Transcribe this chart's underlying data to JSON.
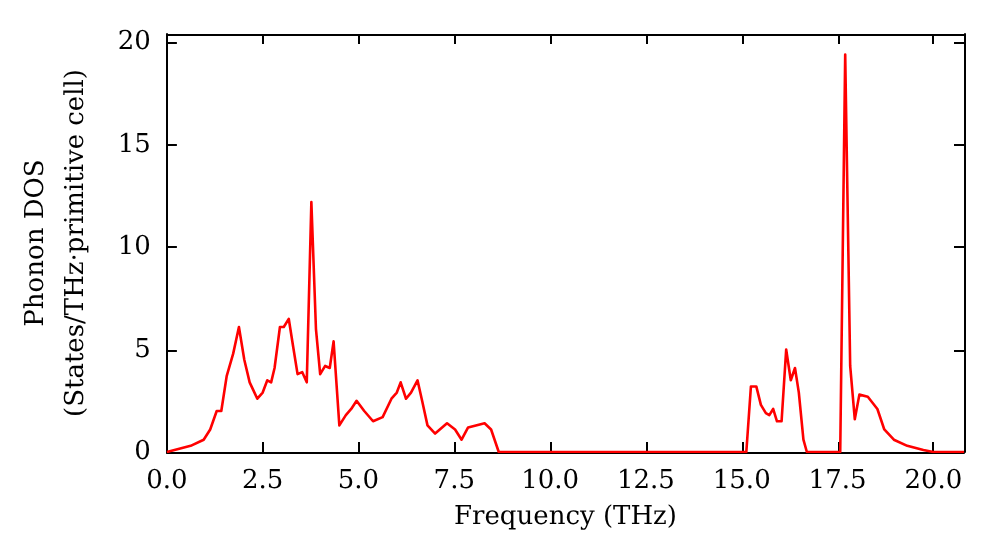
{
  "chart_data": {
    "type": "line",
    "xlabel": "Frequency (THz)",
    "ylabel": "Phonon DOS\n(States/THz·primitive cell)",
    "xlim": [
      0,
      20.8
    ],
    "ylim": [
      0,
      20.4
    ],
    "xticks": [
      {
        "value": 0,
        "label": "0.0"
      },
      {
        "value": 2.5,
        "label": "2.5"
      },
      {
        "value": 5,
        "label": "5.0"
      },
      {
        "value": 7.5,
        "label": "7.5"
      },
      {
        "value": 10,
        "label": "10.0"
      },
      {
        "value": 12.5,
        "label": "12.5"
      },
      {
        "value": 15,
        "label": "15.0"
      },
      {
        "value": 17.5,
        "label": "17.5"
      },
      {
        "value": 20,
        "label": "20.0"
      }
    ],
    "yticks": [
      0,
      5,
      10,
      15,
      20
    ],
    "grid": false,
    "marker": "none",
    "line_style": "solid",
    "x": [
      0,
      0.62,
      0.96,
      1.13,
      1.3,
      1.42,
      1.56,
      1.73,
      1.88,
      2.02,
      2.16,
      2.36,
      2.5,
      2.62,
      2.72,
      2.81,
      2.95,
      3.05,
      3.18,
      3.29,
      3.41,
      3.53,
      3.65,
      3.77,
      3.89,
      4.0,
      4.13,
      4.25,
      4.35,
      4.5,
      4.67,
      4.81,
      4.95,
      5.15,
      5.38,
      5.63,
      5.86,
      6.0,
      6.1,
      6.24,
      6.37,
      6.54,
      6.66,
      6.8,
      7.0,
      7.31,
      7.52,
      7.69,
      7.86,
      8.29,
      8.46,
      8.66,
      15.12,
      15.24,
      15.38,
      15.5,
      15.63,
      15.72,
      15.82,
      15.92,
      16.04,
      16.16,
      16.28,
      16.39,
      16.49,
      16.61,
      16.7,
      17.57,
      17.7,
      17.83,
      17.95,
      18.07,
      18.29,
      18.54,
      18.72,
      18.97,
      19.32,
      19.74,
      20.0,
      20.8
    ],
    "series": [
      {
        "color": "#ff0000",
        "values": [
          0,
          0.3,
          0.6,
          1.1,
          2.0,
          2.0,
          3.7,
          4.8,
          6.1,
          4.5,
          3.4,
          2.6,
          2.9,
          3.5,
          3.4,
          4.1,
          6.1,
          6.1,
          6.5,
          5.2,
          3.8,
          3.9,
          3.4,
          12.2,
          6.0,
          3.8,
          4.2,
          4.1,
          5.4,
          1.3,
          1.8,
          2.1,
          2.5,
          2.0,
          1.5,
          1.7,
          2.6,
          2.9,
          3.4,
          2.6,
          2.9,
          3.5,
          2.5,
          1.3,
          0.9,
          1.4,
          1.1,
          0.6,
          1.2,
          1.4,
          1.1,
          0,
          0,
          3.2,
          3.2,
          2.3,
          1.9,
          1.8,
          2.1,
          1.5,
          1.5,
          5.0,
          3.5,
          4.1,
          2.9,
          0.6,
          0,
          0,
          19.4,
          4.2,
          1.6,
          2.8,
          2.7,
          2.1,
          1.1,
          0.6,
          0.3,
          0.1,
          0,
          0
        ]
      }
    ]
  }
}
